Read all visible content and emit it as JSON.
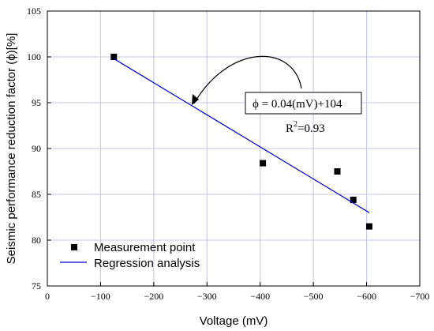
{
  "chart_data": {
    "type": "scatter",
    "title": "",
    "xlabel": "Voltage (mV)",
    "ylabel": "Seismic performance reduction factor (ϕ)[%]",
    "xlim": [
      0,
      -700
    ],
    "ylim": [
      75,
      105
    ],
    "xticks": [
      0,
      -100,
      -200,
      -300,
      -400,
      -500,
      -600,
      -700
    ],
    "yticks": [
      75,
      80,
      85,
      90,
      95,
      100,
      105
    ],
    "grid": true,
    "legend_position": "bottom-left",
    "series": [
      {
        "name": "Measurement point",
        "kind": "scatter",
        "marker": "square",
        "color": "#000000",
        "x": [
          -125,
          -405,
          -545,
          -575,
          -605
        ],
        "y": [
          100.0,
          88.4,
          87.5,
          84.4,
          81.5
        ]
      },
      {
        "name": "Regression analysis",
        "kind": "line",
        "color": "#0000cc",
        "x": [
          -125,
          -605
        ],
        "y": [
          99.8,
          83.0
        ]
      }
    ],
    "annotations": {
      "equation": "ϕ = 0.04(mV)+104",
      "r2_base": "R",
      "r2_sup": "2",
      "r2_rest": "=0.93"
    }
  }
}
